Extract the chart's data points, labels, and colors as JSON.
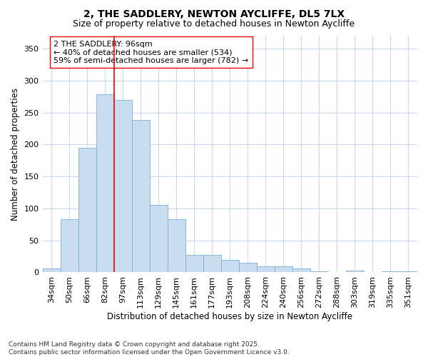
{
  "title": "2, THE SADDLERY, NEWTON AYCLIFFE, DL5 7LX",
  "subtitle": "Size of property relative to detached houses in Newton Aycliffe",
  "xlabel": "Distribution of detached houses by size in Newton Aycliffe",
  "ylabel": "Number of detached properties",
  "categories": [
    "34sqm",
    "50sqm",
    "66sqm",
    "82sqm",
    "97sqm",
    "113sqm",
    "129sqm",
    "145sqm",
    "161sqm",
    "177sqm",
    "193sqm",
    "208sqm",
    "224sqm",
    "240sqm",
    "256sqm",
    "272sqm",
    "288sqm",
    "303sqm",
    "319sqm",
    "335sqm",
    "351sqm"
  ],
  "values": [
    6,
    83,
    195,
    278,
    270,
    238,
    105,
    83,
    27,
    27,
    19,
    15,
    9,
    9,
    6,
    2,
    0,
    3,
    1,
    2,
    2
  ],
  "bar_color": "#c8ddf0",
  "bar_edge_color": "#7aaed6",
  "vline_color": "red",
  "vline_bin_index": 4,
  "annotation_text": "2 THE SADDLERY: 96sqm\n← 40% of detached houses are smaller (534)\n59% of semi-detached houses are larger (782) →",
  "annotation_box_color": "white",
  "annotation_box_edge": "red",
  "ylim": [
    0,
    370
  ],
  "yticks": [
    0,
    50,
    100,
    150,
    200,
    250,
    300,
    350
  ],
  "plot_bg_color": "#ffffff",
  "fig_bg_color": "#ffffff",
  "grid_color": "#c8d8f0",
  "footer_text": "Contains HM Land Registry data © Crown copyright and database right 2025.\nContains public sector information licensed under the Open Government Licence v3.0.",
  "title_fontsize": 10,
  "subtitle_fontsize": 9,
  "xlabel_fontsize": 8.5,
  "ylabel_fontsize": 8.5,
  "tick_fontsize": 8,
  "annotation_fontsize": 8,
  "footer_fontsize": 6.5
}
